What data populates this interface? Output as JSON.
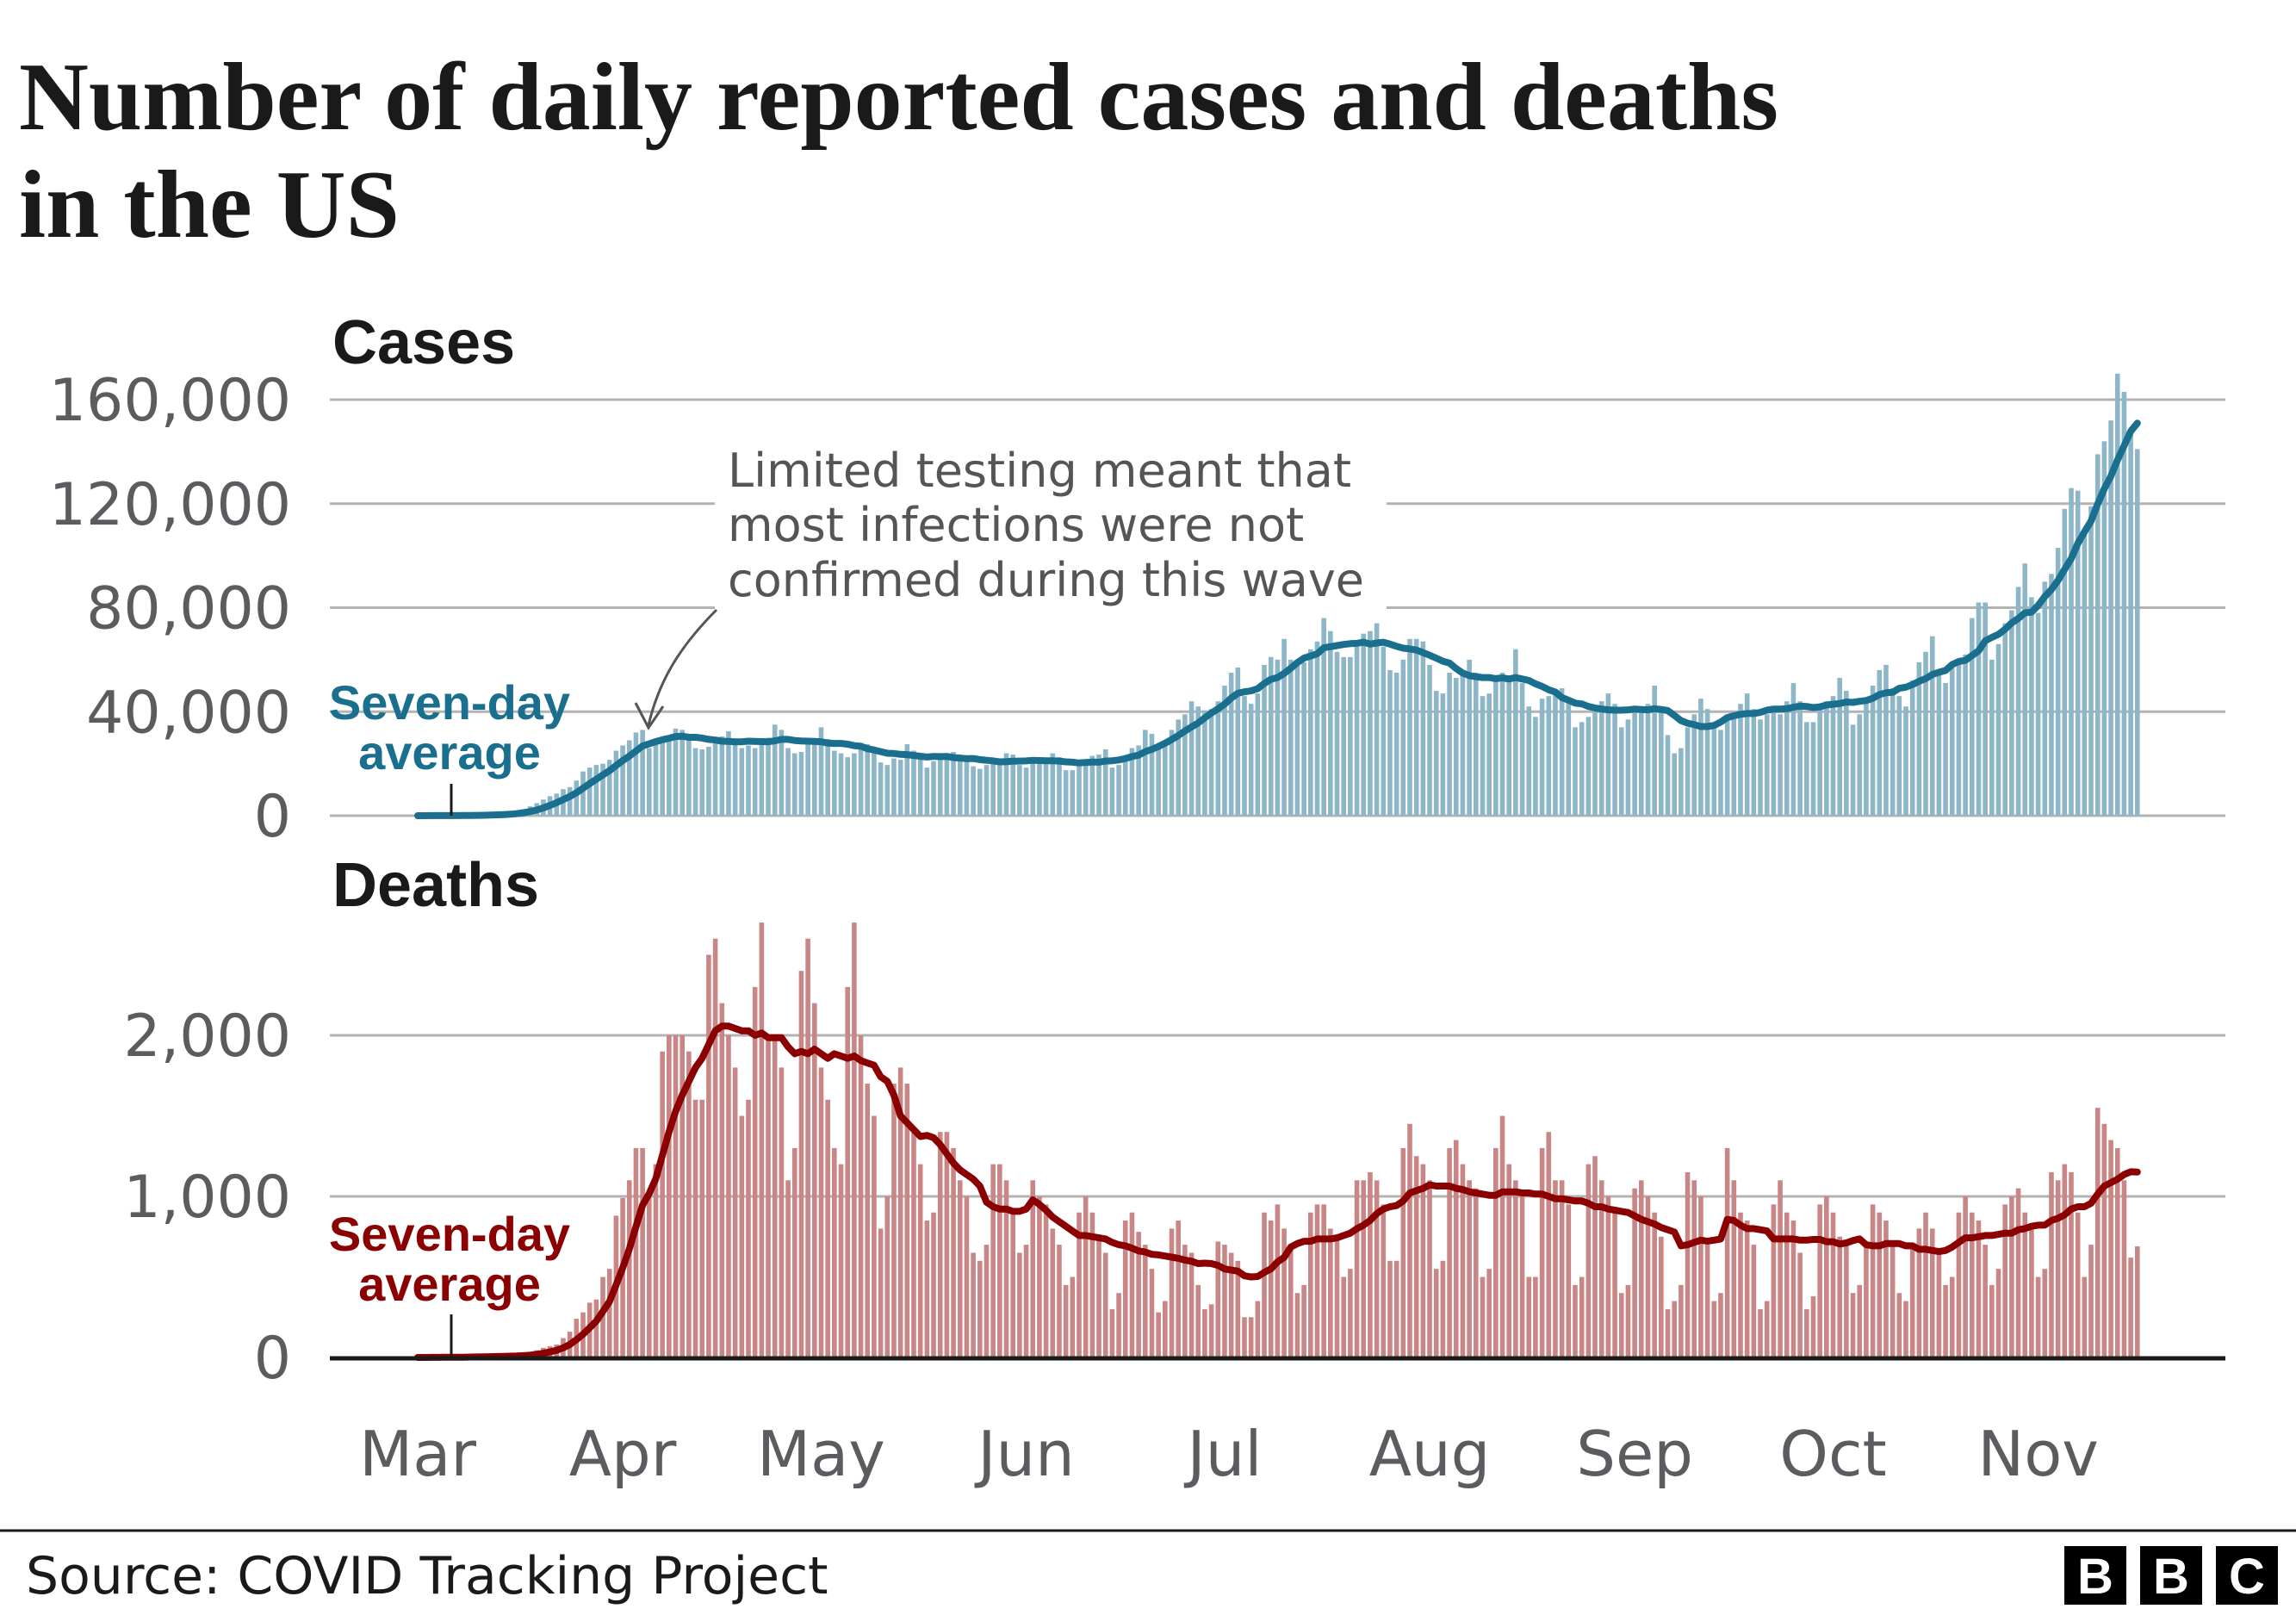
{
  "title_lines": [
    "Number of daily reported cases and deaths",
    "in the US"
  ],
  "footer": {
    "source": "Source: COVID Tracking Project",
    "logo": [
      "B",
      "B",
      "C"
    ]
  },
  "colors": {
    "cases_bar": "#8db6c8",
    "cases_line": "#1a6e8e",
    "deaths_bar": "#c98686",
    "deaths_line": "#8b0000",
    "grid": "#b3b3b3"
  },
  "chart_data": [
    {
      "type": "bar",
      "title": "Cases",
      "x_start": "2020-03-01",
      "x_end": "2020-11-16",
      "x_ticks": [
        "Mar",
        "Apr",
        "May",
        "Jun",
        "Jul",
        "Aug",
        "Sep",
        "Oct",
        "Nov"
      ],
      "ylim": [
        0,
        160000
      ],
      "y_ticks": [
        0,
        40000,
        80000,
        120000,
        160000
      ],
      "y_tick_labels": [
        "0",
        "40,000",
        "80,000",
        "120,000",
        "160,000"
      ],
      "grid": true,
      "line_label": "Seven-day average",
      "line_label_lines": [
        "Seven-day",
        "average"
      ],
      "annotation_lines": [
        "Limited testing meant that",
        "most infections were not",
        "confirmed during this wave"
      ],
      "values": [
        10,
        20,
        20,
        40,
        60,
        80,
        110,
        130,
        170,
        280,
        400,
        500,
        700,
        900,
        1100,
        1800,
        2500,
        3600,
        4800,
        6200,
        7500,
        8500,
        10200,
        11000,
        13500,
        17000,
        18500,
        19500,
        20000,
        21500,
        25000,
        27000,
        29000,
        32000,
        33000,
        26000,
        27500,
        30000,
        31000,
        33500,
        33000,
        30000,
        26000,
        25500,
        26500,
        29000,
        30500,
        32500,
        29000,
        26000,
        27000,
        26000,
        28500,
        30000,
        35000,
        33000,
        26000,
        24000,
        24500,
        28000,
        29500,
        34000,
        29500,
        25000,
        24000,
        22500,
        24000,
        28000,
        27500,
        26000,
        20500,
        19500,
        22000,
        21500,
        27500,
        25000,
        24000,
        18500,
        21000,
        21500,
        22000,
        24500,
        23500,
        22500,
        19000,
        18000,
        19500,
        20500,
        22000,
        24000,
        23500,
        19500,
        18500,
        21000,
        20000,
        21500,
        24000,
        22500,
        17500,
        17500,
        19000,
        21000,
        23000,
        23500,
        25500,
        18500,
        19500,
        23000,
        26000,
        27000,
        33000,
        31500,
        26500,
        28000,
        33000,
        37000,
        39000,
        44000,
        42000,
        40500,
        41000,
        44000,
        50000,
        55000,
        57000,
        46000,
        43000,
        47000,
        58000,
        61000,
        60000,
        68000,
        60000,
        58000,
        59000,
        64000,
        67000,
        76000,
        71000,
        63000,
        61000,
        61000,
        65000,
        70000,
        71000,
        74000,
        65000,
        56000,
        55000,
        60000,
        68000,
        68000,
        67000,
        58000,
        48000,
        47000,
        55000,
        53000,
        56000,
        60000,
        55000,
        46000,
        47000,
        52000,
        55000,
        53000,
        64000,
        51000,
        42000,
        38000,
        45000,
        46000,
        47000,
        49000,
        44000,
        34000,
        36000,
        38000,
        42000,
        44000,
        47000,
        43000,
        34000,
        37000,
        40000,
        41000,
        43000,
        50000,
        41000,
        31000,
        24000,
        26000,
        34000,
        39000,
        45000,
        41000,
        34000,
        33000,
        38000,
        39000,
        43000,
        47000,
        41000,
        37000,
        39000,
        41000,
        39000,
        44000,
        51000,
        44000,
        36000,
        36000,
        43000,
        44000,
        46000,
        53000,
        48000,
        35000,
        39000,
        45000,
        50000,
        56000,
        58000,
        49000,
        46000,
        42000,
        52000,
        59000,
        63000,
        69000,
        55000,
        51000,
        58000,
        60000,
        62000,
        76000,
        82000,
        82000,
        60000,
        66000,
        74000,
        79000,
        88000,
        97000,
        84000,
        78000,
        90000,
        93000,
        103000,
        118000,
        126000,
        125000,
        109000,
        119000,
        139000,
        144000,
        152000,
        170000,
        163000,
        148000,
        141000
      ]
    },
    {
      "type": "bar",
      "title": "Deaths",
      "x_start": "2020-03-01",
      "x_end": "2020-11-16",
      "x_ticks": [
        "Mar",
        "Apr",
        "May",
        "Jun",
        "Jul",
        "Aug",
        "Sep",
        "Oct",
        "Nov"
      ],
      "ylim": [
        0,
        2800
      ],
      "y_ticks": [
        0,
        1000,
        2000
      ],
      "y_tick_labels": [
        "0",
        "1,000",
        "2,000"
      ],
      "grid": true,
      "line_label": "Seven-day average",
      "line_label_lines": [
        "Seven-day",
        "average"
      ],
      "values": [
        0,
        0,
        1,
        2,
        2,
        2,
        3,
        3,
        4,
        5,
        7,
        8,
        10,
        12,
        10,
        12,
        20,
        25,
        45,
        60,
        70,
        80,
        120,
        160,
        240,
        280,
        340,
        360,
        500,
        550,
        880,
        990,
        1100,
        1300,
        1300,
        1000,
        1200,
        1900,
        2000,
        2000,
        2000,
        1900,
        1600,
        1600,
        2500,
        2600,
        2200,
        2000,
        1800,
        1500,
        1600,
        2300,
        2700,
        2000,
        2000,
        1800,
        1100,
        1300,
        2400,
        2600,
        2200,
        1800,
        1600,
        1300,
        1200,
        2300,
        2700,
        2000,
        1700,
        1500,
        800,
        1000,
        1700,
        1800,
        1700,
        1400,
        1200,
        850,
        900,
        1400,
        1400,
        1300,
        1100,
        1000,
        650,
        600,
        700,
        1200,
        1200,
        1100,
        900,
        650,
        700,
        1100,
        1000,
        950,
        800,
        700,
        450,
        500,
        900,
        1000,
        900,
        750,
        650,
        300,
        400,
        850,
        900,
        780,
        700,
        550,
        280,
        350,
        800,
        850,
        700,
        650,
        450,
        300,
        330,
        720,
        700,
        650,
        600,
        250,
        250,
        350,
        900,
        850,
        950,
        800,
        700,
        400,
        450,
        900,
        950,
        950,
        800,
        750,
        500,
        550,
        1100,
        1100,
        1150,
        1100,
        950,
        600,
        600,
        1300,
        1450,
        1250,
        1200,
        1100,
        550,
        600,
        1300,
        1350,
        1200,
        1100,
        1050,
        500,
        550,
        1300,
        1500,
        1200,
        1100,
        1000,
        500,
        500,
        1300,
        1400,
        1100,
        1100,
        950,
        450,
        500,
        1200,
        1250,
        1100,
        1000,
        900,
        400,
        450,
        1050,
        1100,
        1000,
        900,
        750,
        300,
        350,
        450,
        1150,
        1100,
        1000,
        700,
        350,
        400,
        1300,
        1100,
        900,
        850,
        700,
        300,
        350,
        950,
        1100,
        900,
        850,
        650,
        300,
        380,
        950,
        1000,
        900,
        750,
        700,
        400,
        450,
        700,
        950,
        900,
        850,
        700,
        400,
        350,
        700,
        800,
        900,
        800,
        650,
        450,
        500,
        900,
        1000,
        900,
        850,
        700,
        450,
        550,
        950,
        1000,
        1050,
        900,
        800,
        500,
        550,
        1150,
        1100,
        1200,
        1150,
        900,
        500,
        700,
        1550,
        1450,
        1350,
        1300,
        1100,
        620,
        690
      ]
    }
  ]
}
